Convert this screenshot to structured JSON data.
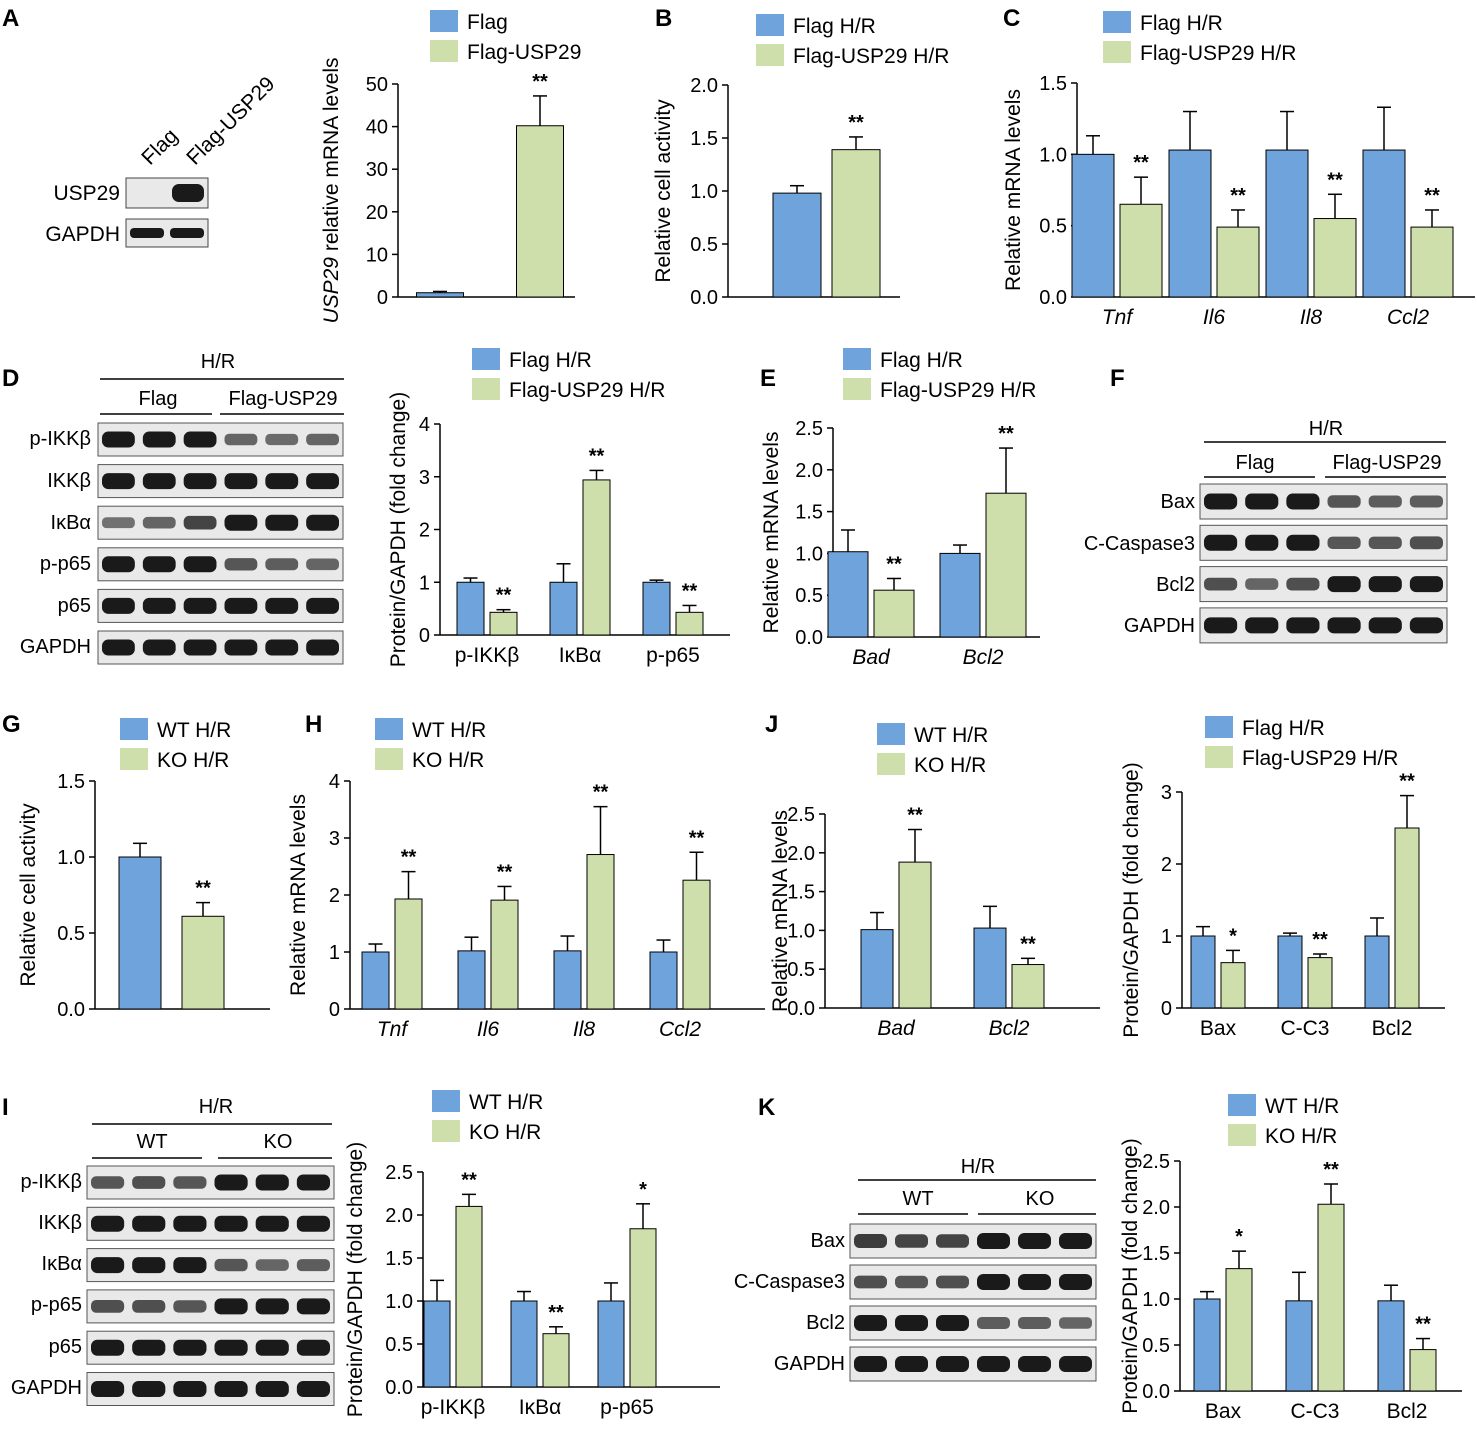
{
  "colors": {
    "series_a": "#6fa3dc",
    "series_b": "#cfdfab",
    "bar_stroke": "#000000",
    "blot_bg": "#e9e9e9",
    "band": "#1a1a1a"
  },
  "panels": {
    "A": {
      "letter": "A",
      "blot": {
        "columns": [
          "Flag",
          "Flag-USP29"
        ],
        "rows": [
          "USP29",
          "GAPDH"
        ]
      }
    },
    "D": {
      "letter": "D",
      "blot": {
        "condition": "H/R",
        "groups": [
          "Flag",
          "Flag-USP29"
        ],
        "rows": [
          "p-IKKβ",
          "IKKβ",
          "IκBα",
          "p-p65",
          "p65",
          "GAPDH"
        ]
      }
    },
    "F": {
      "letter": "F",
      "blot": {
        "condition": "H/R",
        "groups": [
          "Flag",
          "Flag-USP29"
        ],
        "rows": [
          "Bax",
          "C-Caspase3",
          "Bcl2",
          "GAPDH"
        ]
      }
    },
    "I": {
      "letter": "I",
      "blot": {
        "condition": "H/R",
        "groups": [
          "WT",
          "KO"
        ],
        "rows": [
          "p-IKKβ",
          "IKKβ",
          "IκBα",
          "p-p65",
          "p65",
          "GAPDH"
        ]
      }
    },
    "K": {
      "letter": "K",
      "blot": {
        "condition": "H/R",
        "groups": [
          "WT",
          "KO"
        ],
        "rows": [
          "Bax",
          "C-Caspase3",
          "Bcl2",
          "GAPDH"
        ]
      }
    },
    "B": {
      "letter": "B"
    },
    "C": {
      "letter": "C"
    },
    "E": {
      "letter": "E"
    },
    "G": {
      "letter": "G"
    },
    "H": {
      "letter": "H"
    },
    "J": {
      "letter": "J"
    }
  },
  "chart_data": [
    {
      "id": "A",
      "type": "bar",
      "title": "",
      "ylabel": "USP29 relative mRNA levels",
      "ylabel_italic_prefix": "USP29",
      "categories": [
        ""
      ],
      "ylim": [
        0,
        50
      ],
      "yticks": [
        0,
        10,
        20,
        30,
        40,
        50
      ],
      "series": [
        {
          "name": "Flag",
          "values": [
            1.0
          ],
          "errors": [
            0.3
          ],
          "sig": [
            ""
          ]
        },
        {
          "name": "Flag-USP29",
          "values": [
            40.2
          ],
          "errors": [
            7.0
          ],
          "sig": [
            "**"
          ]
        }
      ],
      "legend": [
        "Flag",
        "Flag-USP29"
      ]
    },
    {
      "id": "B",
      "type": "bar",
      "ylabel": "Relative cell activity",
      "categories": [
        ""
      ],
      "ylim": [
        0,
        2.0
      ],
      "yticks": [
        0.0,
        0.5,
        1.0,
        1.5,
        2.0
      ],
      "series": [
        {
          "name": "Flag H/R",
          "values": [
            0.98
          ],
          "errors": [
            0.07
          ],
          "sig": [
            ""
          ]
        },
        {
          "name": "Flag-USP29 H/R",
          "values": [
            1.39
          ],
          "errors": [
            0.12
          ],
          "sig": [
            "**"
          ]
        }
      ],
      "legend": [
        "Flag H/R",
        "Flag-USP29 H/R"
      ]
    },
    {
      "id": "C",
      "type": "bar",
      "ylabel": "Relative mRNA levels",
      "italic_categories": true,
      "categories": [
        "Tnf",
        "Il6",
        "Il8",
        "Ccl2"
      ],
      "ylim": [
        0,
        1.5
      ],
      "yticks": [
        0.0,
        0.5,
        1.0,
        1.5
      ],
      "series": [
        {
          "name": "Flag H/R",
          "values": [
            1.0,
            1.03,
            1.03,
            1.03
          ],
          "errors": [
            0.13,
            0.27,
            0.27,
            0.3
          ],
          "sig": [
            "",
            "",
            "",
            ""
          ]
        },
        {
          "name": "Flag-USP29 H/R",
          "values": [
            0.65,
            0.49,
            0.55,
            0.49
          ],
          "errors": [
            0.19,
            0.12,
            0.17,
            0.12
          ],
          "sig": [
            "**",
            "**",
            "**",
            "**"
          ]
        }
      ],
      "legend": [
        "Flag H/R",
        "Flag-USP29 H/R"
      ]
    },
    {
      "id": "D",
      "type": "bar",
      "ylabel": "Protein/GAPDH (fold change)",
      "categories": [
        "p-IKKβ",
        "IκBα",
        "p-p65"
      ],
      "ylim": [
        0,
        4
      ],
      "yticks": [
        0,
        1,
        2,
        3,
        4
      ],
      "series": [
        {
          "name": "Flag H/R",
          "values": [
            1.0,
            1.0,
            1.0
          ],
          "errors": [
            0.08,
            0.35,
            0.04
          ],
          "sig": [
            "",
            "",
            ""
          ]
        },
        {
          "name": "Flag-USP29 H/R",
          "values": [
            0.43,
            2.94,
            0.43
          ],
          "errors": [
            0.05,
            0.18,
            0.13
          ],
          "sig": [
            "**",
            "**",
            "**"
          ]
        }
      ],
      "legend": [
        "Flag H/R",
        "Flag-USP29 H/R"
      ]
    },
    {
      "id": "E",
      "type": "bar",
      "ylabel": "Relative mRNA levels",
      "italic_categories": true,
      "categories": [
        "Bad",
        "Bcl2"
      ],
      "ylim": [
        0,
        2.5
      ],
      "yticks": [
        0.0,
        0.5,
        1.0,
        1.5,
        2.0,
        2.5
      ],
      "series": [
        {
          "name": "Flag H/R",
          "values": [
            1.02,
            1.0
          ],
          "errors": [
            0.26,
            0.1
          ],
          "sig": [
            "",
            ""
          ]
        },
        {
          "name": "Flag-USP29 H/R",
          "values": [
            0.56,
            1.72
          ],
          "errors": [
            0.14,
            0.54
          ],
          "sig": [
            "**",
            "**"
          ]
        }
      ],
      "legend": [
        "Flag H/R",
        "Flag-USP29 H/R"
      ]
    },
    {
      "id": "F",
      "type": "bar",
      "ylabel": "Protein/GAPDH (fold change)",
      "categories": [
        "Bax",
        "C-C3",
        "Bcl2"
      ],
      "ylim": [
        0,
        3
      ],
      "yticks": [
        0,
        1,
        2,
        3
      ],
      "series": [
        {
          "name": "Flag H/R",
          "values": [
            1.0,
            1.0,
            1.0
          ],
          "errors": [
            0.13,
            0.04,
            0.25
          ],
          "sig": [
            "",
            "",
            ""
          ]
        },
        {
          "name": "Flag-USP29 H/R",
          "values": [
            0.63,
            0.7,
            2.5
          ],
          "errors": [
            0.17,
            0.05,
            0.45
          ],
          "sig": [
            "*",
            "**",
            "**"
          ]
        }
      ],
      "legend": [
        "Flag H/R",
        "Flag-USP29 H/R"
      ]
    },
    {
      "id": "G",
      "type": "bar",
      "ylabel": "Relative cell activity",
      "categories": [
        ""
      ],
      "ylim": [
        0,
        1.5
      ],
      "yticks": [
        0.0,
        0.5,
        1.0,
        1.5
      ],
      "series": [
        {
          "name": "WT H/R",
          "values": [
            1.0
          ],
          "errors": [
            0.09
          ],
          "sig": [
            ""
          ]
        },
        {
          "name": "KO H/R",
          "values": [
            0.61
          ],
          "errors": [
            0.09
          ],
          "sig": [
            "**"
          ]
        }
      ],
      "legend": [
        "WT H/R",
        "KO H/R"
      ]
    },
    {
      "id": "H",
      "type": "bar",
      "ylabel": "Relative mRNA levels",
      "italic_categories": true,
      "categories": [
        "Tnf",
        "Il6",
        "Il8",
        "Ccl2"
      ],
      "ylim": [
        0,
        4
      ],
      "yticks": [
        0,
        1,
        2,
        3,
        4
      ],
      "series": [
        {
          "name": "WT H/R",
          "values": [
            1.0,
            1.02,
            1.02,
            1.0
          ],
          "errors": [
            0.14,
            0.24,
            0.26,
            0.21
          ],
          "sig": [
            "",
            "",
            "",
            ""
          ]
        },
        {
          "name": "KO H/R",
          "values": [
            1.93,
            1.91,
            2.71,
            2.26
          ],
          "errors": [
            0.48,
            0.24,
            0.84,
            0.49
          ],
          "sig": [
            "**",
            "**",
            "**",
            "**"
          ]
        }
      ],
      "legend": [
        "WT H/R",
        "KO H/R"
      ]
    },
    {
      "id": "J",
      "type": "bar",
      "ylabel": "Relative mRNA levels",
      "italic_categories": true,
      "categories": [
        "Bad",
        "Bcl2"
      ],
      "ylim": [
        0,
        2.5
      ],
      "yticks": [
        0.0,
        0.5,
        1.0,
        1.5,
        2.0,
        2.5
      ],
      "series": [
        {
          "name": "WT H/R",
          "values": [
            1.01,
            1.03
          ],
          "errors": [
            0.22,
            0.28
          ],
          "sig": [
            "",
            ""
          ]
        },
        {
          "name": "KO H/R",
          "values": [
            1.88,
            0.56
          ],
          "errors": [
            0.42,
            0.08
          ],
          "sig": [
            "**",
            "**"
          ]
        }
      ],
      "legend": [
        "WT H/R",
        "KO H/R"
      ]
    },
    {
      "id": "I",
      "type": "bar",
      "ylabel": "Protein/GAPDH (fold change)",
      "categories": [
        "p-IKKβ",
        "IκBα",
        "p-p65"
      ],
      "ylim": [
        0,
        2.5
      ],
      "yticks": [
        0.0,
        0.5,
        1.0,
        1.5,
        2.0,
        2.5
      ],
      "series": [
        {
          "name": "WT H/R",
          "values": [
            1.0,
            1.0,
            1.0
          ],
          "errors": [
            0.24,
            0.11,
            0.21
          ],
          "sig": [
            "",
            "",
            ""
          ]
        },
        {
          "name": "KO H/R",
          "values": [
            2.1,
            0.62,
            1.84
          ],
          "errors": [
            0.14,
            0.08,
            0.29
          ],
          "sig": [
            "**",
            "**",
            "*"
          ]
        }
      ],
      "legend": [
        "WT H/R",
        "KO H/R"
      ]
    },
    {
      "id": "K",
      "type": "bar",
      "ylabel": "Protein/GAPDH (fold change)",
      "categories": [
        "Bax",
        "C-C3",
        "Bcl2"
      ],
      "ylim": [
        0,
        2.5
      ],
      "yticks": [
        0.0,
        0.5,
        1.0,
        1.5,
        2.0,
        2.5
      ],
      "series": [
        {
          "name": "WT H/R",
          "values": [
            1.0,
            0.98,
            0.98
          ],
          "errors": [
            0.08,
            0.31,
            0.17
          ],
          "sig": [
            "",
            "",
            ""
          ]
        },
        {
          "name": "KO H/R",
          "values": [
            1.33,
            2.03,
            0.45
          ],
          "errors": [
            0.19,
            0.22,
            0.12
          ],
          "sig": [
            "*",
            "**",
            "**"
          ]
        }
      ],
      "legend": [
        "WT H/R",
        "KO H/R"
      ]
    }
  ]
}
